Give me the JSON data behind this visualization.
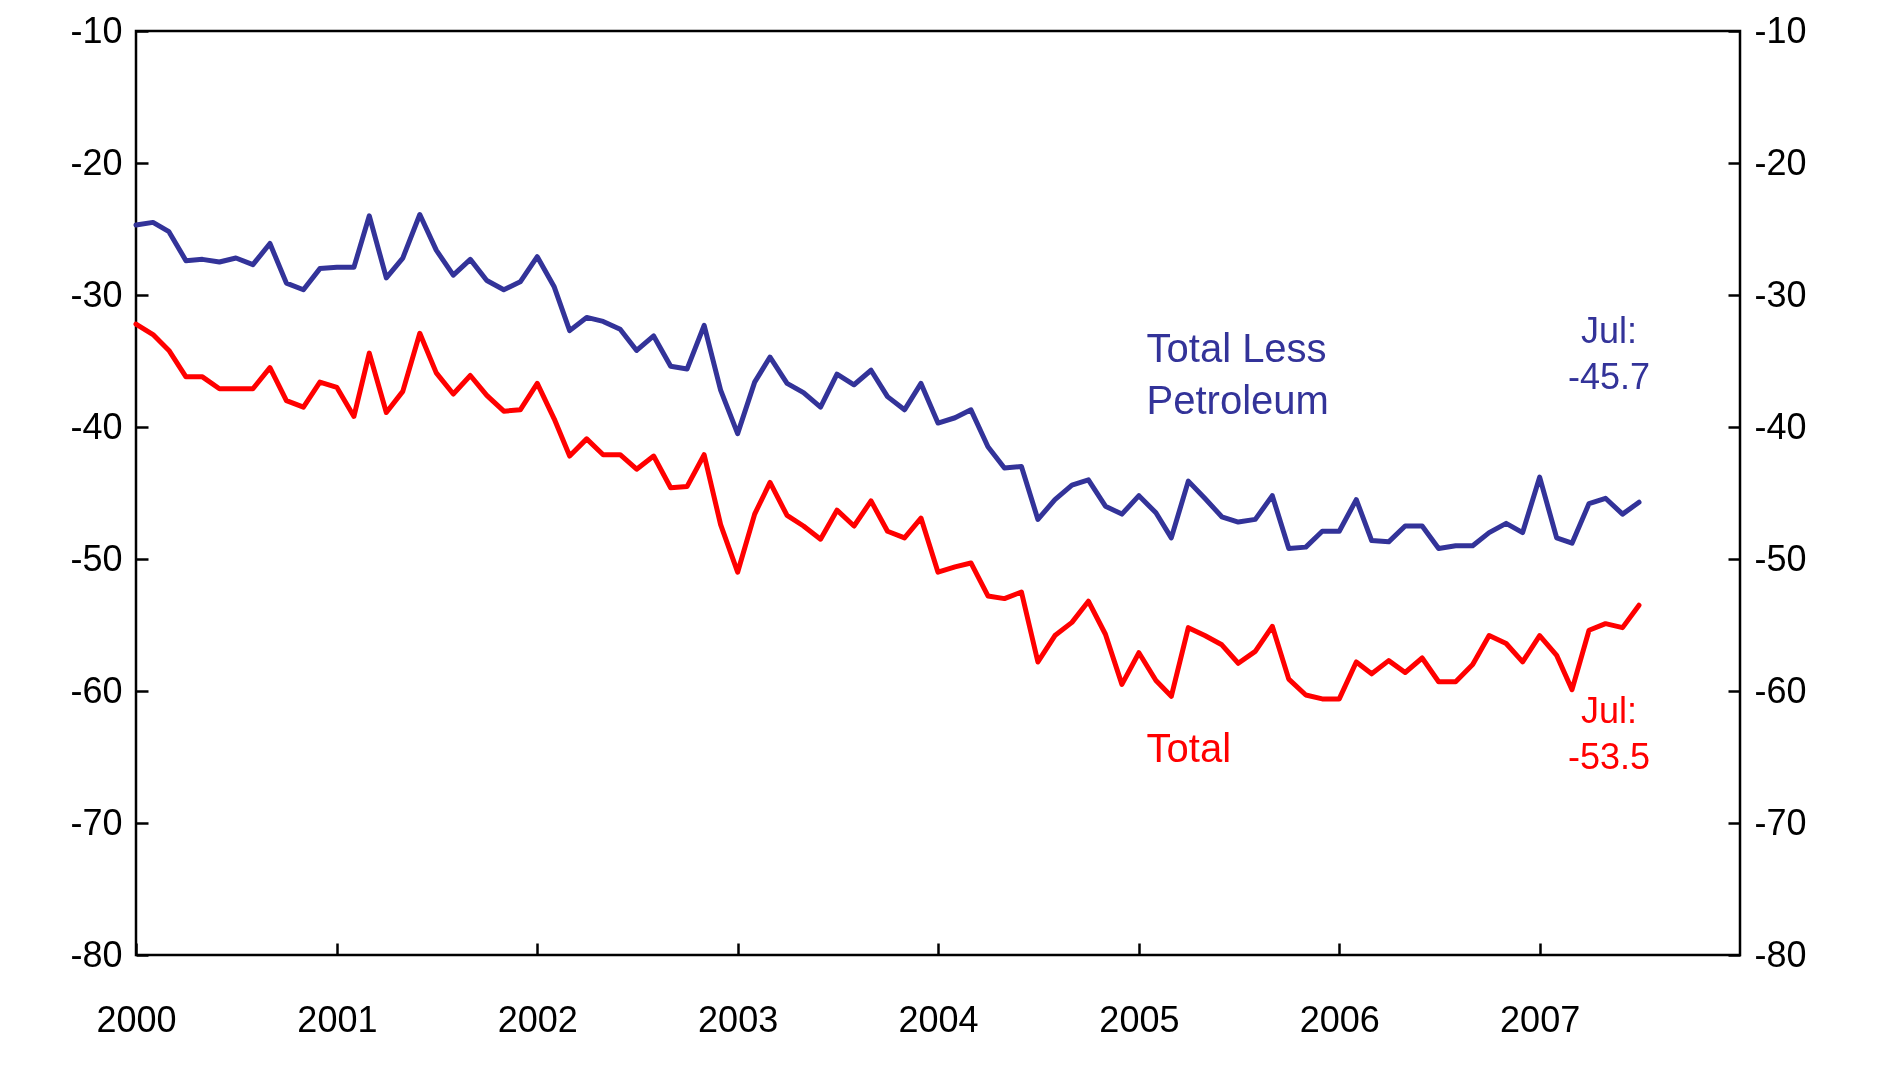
{
  "chart_data": {
    "type": "line",
    "x": [
      "2000-01",
      "2000-02",
      "2000-03",
      "2000-04",
      "2000-05",
      "2000-06",
      "2000-07",
      "2000-08",
      "2000-09",
      "2000-10",
      "2000-11",
      "2000-12",
      "2001-01",
      "2001-02",
      "2001-03",
      "2001-04",
      "2001-05",
      "2001-06",
      "2001-07",
      "2001-08",
      "2001-09",
      "2001-10",
      "2001-11",
      "2001-12",
      "2002-01",
      "2002-02",
      "2002-03",
      "2002-04",
      "2002-05",
      "2002-06",
      "2002-07",
      "2002-08",
      "2002-09",
      "2002-10",
      "2002-11",
      "2002-12",
      "2003-01",
      "2003-02",
      "2003-03",
      "2003-04",
      "2003-05",
      "2003-06",
      "2003-07",
      "2003-08",
      "2003-09",
      "2003-10",
      "2003-11",
      "2003-12",
      "2004-01",
      "2004-02",
      "2004-03",
      "2004-04",
      "2004-05",
      "2004-06",
      "2004-07",
      "2004-08",
      "2004-09",
      "2004-10",
      "2004-11",
      "2004-12",
      "2005-01",
      "2005-02",
      "2005-03",
      "2005-04",
      "2005-05",
      "2005-06",
      "2005-07",
      "2005-08",
      "2005-09",
      "2005-10",
      "2005-11",
      "2005-12",
      "2006-01",
      "2006-02",
      "2006-03",
      "2006-04",
      "2006-05",
      "2006-06",
      "2006-07",
      "2006-08",
      "2006-09",
      "2006-10",
      "2006-11",
      "2006-12",
      "2007-01",
      "2007-02",
      "2007-03",
      "2007-04",
      "2007-05",
      "2007-06",
      "2007-07"
    ],
    "series": [
      {
        "name": "Total Less Petroleum",
        "color": "#333399",
        "values": [
          -24.7,
          -24.5,
          -25.2,
          -27.4,
          -27.3,
          -27.5,
          -27.2,
          -27.7,
          -26.1,
          -29.1,
          -29.6,
          -28.0,
          -27.9,
          -27.9,
          -24.0,
          -28.7,
          -27.2,
          -23.9,
          -26.6,
          -28.5,
          -27.3,
          -28.9,
          -29.6,
          -29.0,
          -27.1,
          -29.4,
          -32.7,
          -31.7,
          -32.0,
          -32.6,
          -34.2,
          -33.1,
          -35.4,
          -35.6,
          -32.3,
          -37.2,
          -40.5,
          -36.6,
          -34.7,
          -36.7,
          -37.4,
          -38.5,
          -36.0,
          -36.8,
          -35.7,
          -37.7,
          -38.7,
          -36.7,
          -39.7,
          -39.3,
          -38.7,
          -41.5,
          -43.1,
          -43.0,
          -47.0,
          -45.5,
          -44.4,
          -44.0,
          -46.0,
          -46.6,
          -45.2,
          -46.5,
          -48.4,
          -44.1,
          -45.4,
          -46.8,
          -47.2,
          -47.0,
          -45.2,
          -49.2,
          -49.1,
          -47.9,
          -47.9,
          -45.5,
          -48.6,
          -48.7,
          -47.5,
          -47.5,
          -49.2,
          -49.0,
          -49.0,
          -48.0,
          -47.3,
          -48.0,
          -43.8,
          -48.4,
          -48.8,
          -45.8,
          -45.4,
          -46.6,
          -45.7
        ]
      },
      {
        "name": "Total",
        "color": "#ff0000",
        "values": [
          -32.2,
          -33.0,
          -34.2,
          -36.2,
          -36.2,
          -37.1,
          -37.1,
          -37.1,
          -35.5,
          -38.0,
          -38.5,
          -36.6,
          -37.0,
          -39.2,
          -34.4,
          -38.9,
          -37.3,
          -32.9,
          -35.9,
          -37.5,
          -36.1,
          -37.6,
          -38.8,
          -38.7,
          -36.7,
          -39.4,
          -42.2,
          -40.9,
          -42.1,
          -42.1,
          -43.2,
          -42.2,
          -44.6,
          -44.5,
          -42.1,
          -47.4,
          -51.0,
          -46.6,
          -44.2,
          -46.7,
          -47.5,
          -48.5,
          -46.3,
          -47.5,
          -45.6,
          -47.9,
          -48.4,
          -46.9,
          -51.0,
          -50.6,
          -50.3,
          -52.8,
          -53.0,
          -52.5,
          -57.8,
          -55.8,
          -54.8,
          -53.2,
          -55.7,
          -59.5,
          -57.1,
          -59.2,
          -60.4,
          -55.2,
          -55.8,
          -56.5,
          -57.9,
          -57.0,
          -55.1,
          -59.1,
          -60.3,
          -60.6,
          -60.6,
          -57.8,
          -58.7,
          -57.7,
          -58.6,
          -57.5,
          -59.3,
          -59.3,
          -58.0,
          -55.8,
          -56.4,
          -57.8,
          -55.8,
          -57.3,
          -59.9,
          -55.4,
          -54.9,
          -55.2,
          -53.5
        ]
      }
    ],
    "xlim": [
      "2000-01",
      "2008-01"
    ],
    "xticks": [
      "2000",
      "2001",
      "2002",
      "2003",
      "2004",
      "2005",
      "2006",
      "2007"
    ],
    "ylim": [
      -80,
      -10
    ],
    "yticks": [
      -80,
      -70,
      -60,
      -50,
      -40,
      -30,
      -20,
      -10
    ],
    "y2lim": [
      -80,
      -10
    ],
    "y2ticks": [
      -80,
      -70,
      -60,
      -50,
      -40,
      -30,
      -20,
      -10
    ],
    "annotations": [
      {
        "text": "Jul: -45.7",
        "x": "2007-07",
        "y": -45.7
      },
      {
        "text": "Jul: -53.5",
        "x": "2007-07",
        "y": -53.5
      }
    ],
    "grid": false,
    "legend": false,
    "marker": "none",
    "line_style": "solid"
  }
}
